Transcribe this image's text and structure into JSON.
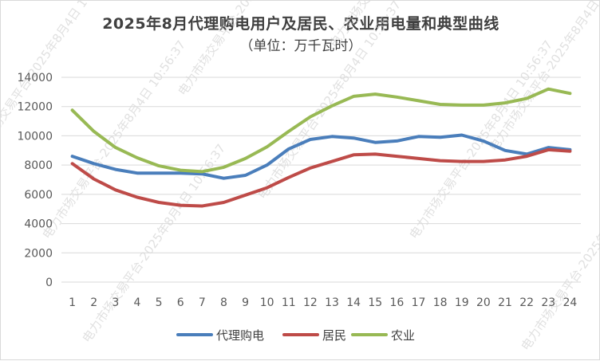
{
  "chart_data": {
    "type": "line",
    "title": "2025年8月代理购电用户及居民、农业用电量和典型曲线",
    "subtitle": "（单位：万千瓦时）",
    "xlabel": "",
    "ylabel": "",
    "categories": [
      "1",
      "2",
      "3",
      "4",
      "5",
      "6",
      "7",
      "8",
      "9",
      "10",
      "11",
      "12",
      "13",
      "14",
      "15",
      "16",
      "17",
      "18",
      "19",
      "20",
      "21",
      "22",
      "23",
      "24"
    ],
    "ylim": [
      0,
      14000
    ],
    "yticks": [
      "0",
      "2000",
      "4000",
      "6000",
      "8000",
      "10000",
      "12000",
      "14000"
    ],
    "grid": "horizontal",
    "legend_position": "bottom",
    "series": [
      {
        "name": "代理购电",
        "color": "#4a7ebb",
        "values": [
          8600,
          8100,
          7700,
          7450,
          7450,
          7450,
          7400,
          7100,
          7300,
          8000,
          9100,
          9750,
          9950,
          9850,
          9550,
          9650,
          9950,
          9900,
          10050,
          9650,
          9000,
          8750,
          9200,
          9050
        ]
      },
      {
        "name": "居民",
        "color": "#be4b48",
        "values": [
          8100,
          7050,
          6300,
          5800,
          5450,
          5250,
          5200,
          5450,
          5950,
          6450,
          7150,
          7800,
          8250,
          8700,
          8750,
          8600,
          8450,
          8300,
          8250,
          8250,
          8350,
          8600,
          9050,
          8950
        ]
      },
      {
        "name": "农业",
        "color": "#98b954",
        "values": [
          11750,
          10300,
          9200,
          8500,
          7950,
          7650,
          7550,
          7850,
          8450,
          9250,
          10300,
          11300,
          12050,
          12700,
          12850,
          12650,
          12400,
          12150,
          12100,
          12100,
          12250,
          12550,
          13200,
          12900
        ]
      }
    ]
  },
  "watermark_text": "电力市场交易平台-2025年8月4日 10:56:37"
}
